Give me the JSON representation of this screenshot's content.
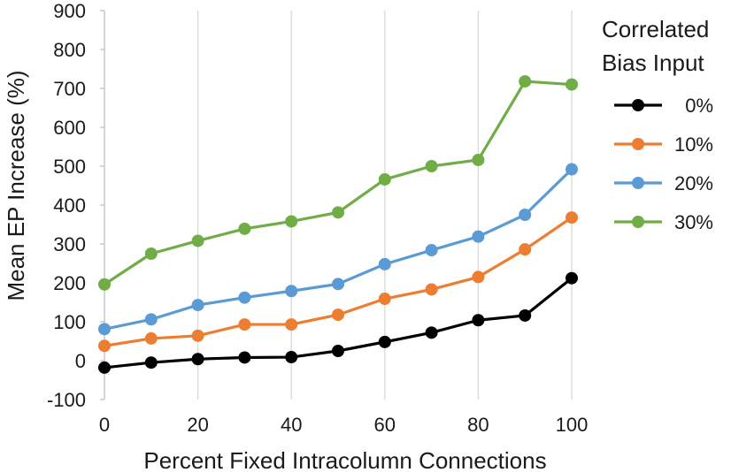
{
  "chart_data": {
    "type": "line",
    "xlabel": "Percent Fixed Intracolumn Connections",
    "ylabel": "Mean EP Increase (%)",
    "xlim": [
      0,
      100
    ],
    "ylim": [
      -100,
      900
    ],
    "xticks": [
      "0",
      "20",
      "40",
      "60",
      "80",
      "100"
    ],
    "yticks": [
      "-100",
      "0",
      "100",
      "200",
      "300",
      "400",
      "500",
      "600",
      "700",
      "800",
      "900"
    ],
    "x": [
      0,
      10,
      20,
      30,
      40,
      50,
      60,
      70,
      80,
      90,
      100
    ],
    "grid": "vertical",
    "legend": {
      "title_lines": [
        "Correlated",
        "Bias Input"
      ],
      "placement": "right"
    },
    "series": [
      {
        "name": "0%",
        "color": "#000000",
        "values": [
          -18,
          -5,
          4,
          8,
          9,
          25,
          48,
          72,
          104,
          116,
          212
        ]
      },
      {
        "name": "10%",
        "color": "#ed7d31",
        "values": [
          38,
          57,
          64,
          93,
          93,
          118,
          159,
          183,
          215,
          286,
          368
        ]
      },
      {
        "name": "20%",
        "color": "#5b9bd5",
        "values": [
          81,
          106,
          143,
          162,
          179,
          197,
          248,
          284,
          319,
          375,
          492
        ]
      },
      {
        "name": "30%",
        "color": "#70ad47",
        "values": [
          196,
          275,
          308,
          339,
          358,
          381,
          466,
          500,
          516,
          718,
          710
        ]
      }
    ]
  }
}
